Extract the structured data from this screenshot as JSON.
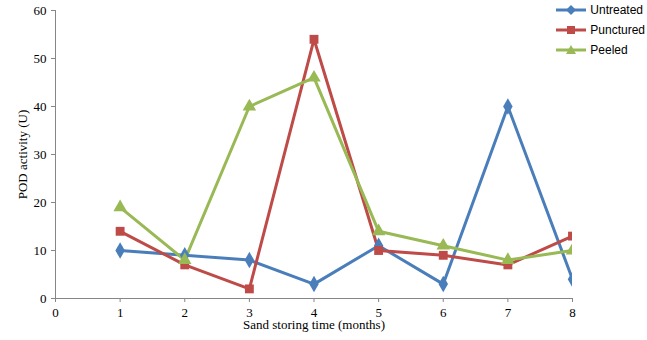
{
  "chart_data": {
    "type": "line",
    "x_label": "Sand storing time (months)",
    "y_label": "POD activity (U)",
    "x": [
      1,
      2,
      3,
      4,
      5,
      6,
      7,
      8
    ],
    "series": [
      {
        "name": "Untreated",
        "color": "#4a7ebb",
        "marker": "diamond",
        "values": [
          10,
          9,
          8,
          3,
          11,
          3,
          40,
          4
        ]
      },
      {
        "name": "Punctured",
        "color": "#be4b48",
        "marker": "square",
        "values": [
          14,
          7,
          2,
          54,
          10,
          9,
          7,
          13
        ]
      },
      {
        "name": "Peeled",
        "color": "#98b954",
        "marker": "triangle",
        "values": [
          19,
          8,
          40,
          46,
          14,
          11,
          8,
          10
        ]
      }
    ],
    "xlim": [
      0,
      8
    ],
    "xticks": [
      0,
      1,
      2,
      3,
      4,
      5,
      6,
      7,
      8
    ],
    "ylim": [
      0,
      60
    ],
    "yticks": [
      0,
      10,
      20,
      30,
      40,
      50,
      60
    ],
    "grid": false,
    "legend": "right"
  }
}
